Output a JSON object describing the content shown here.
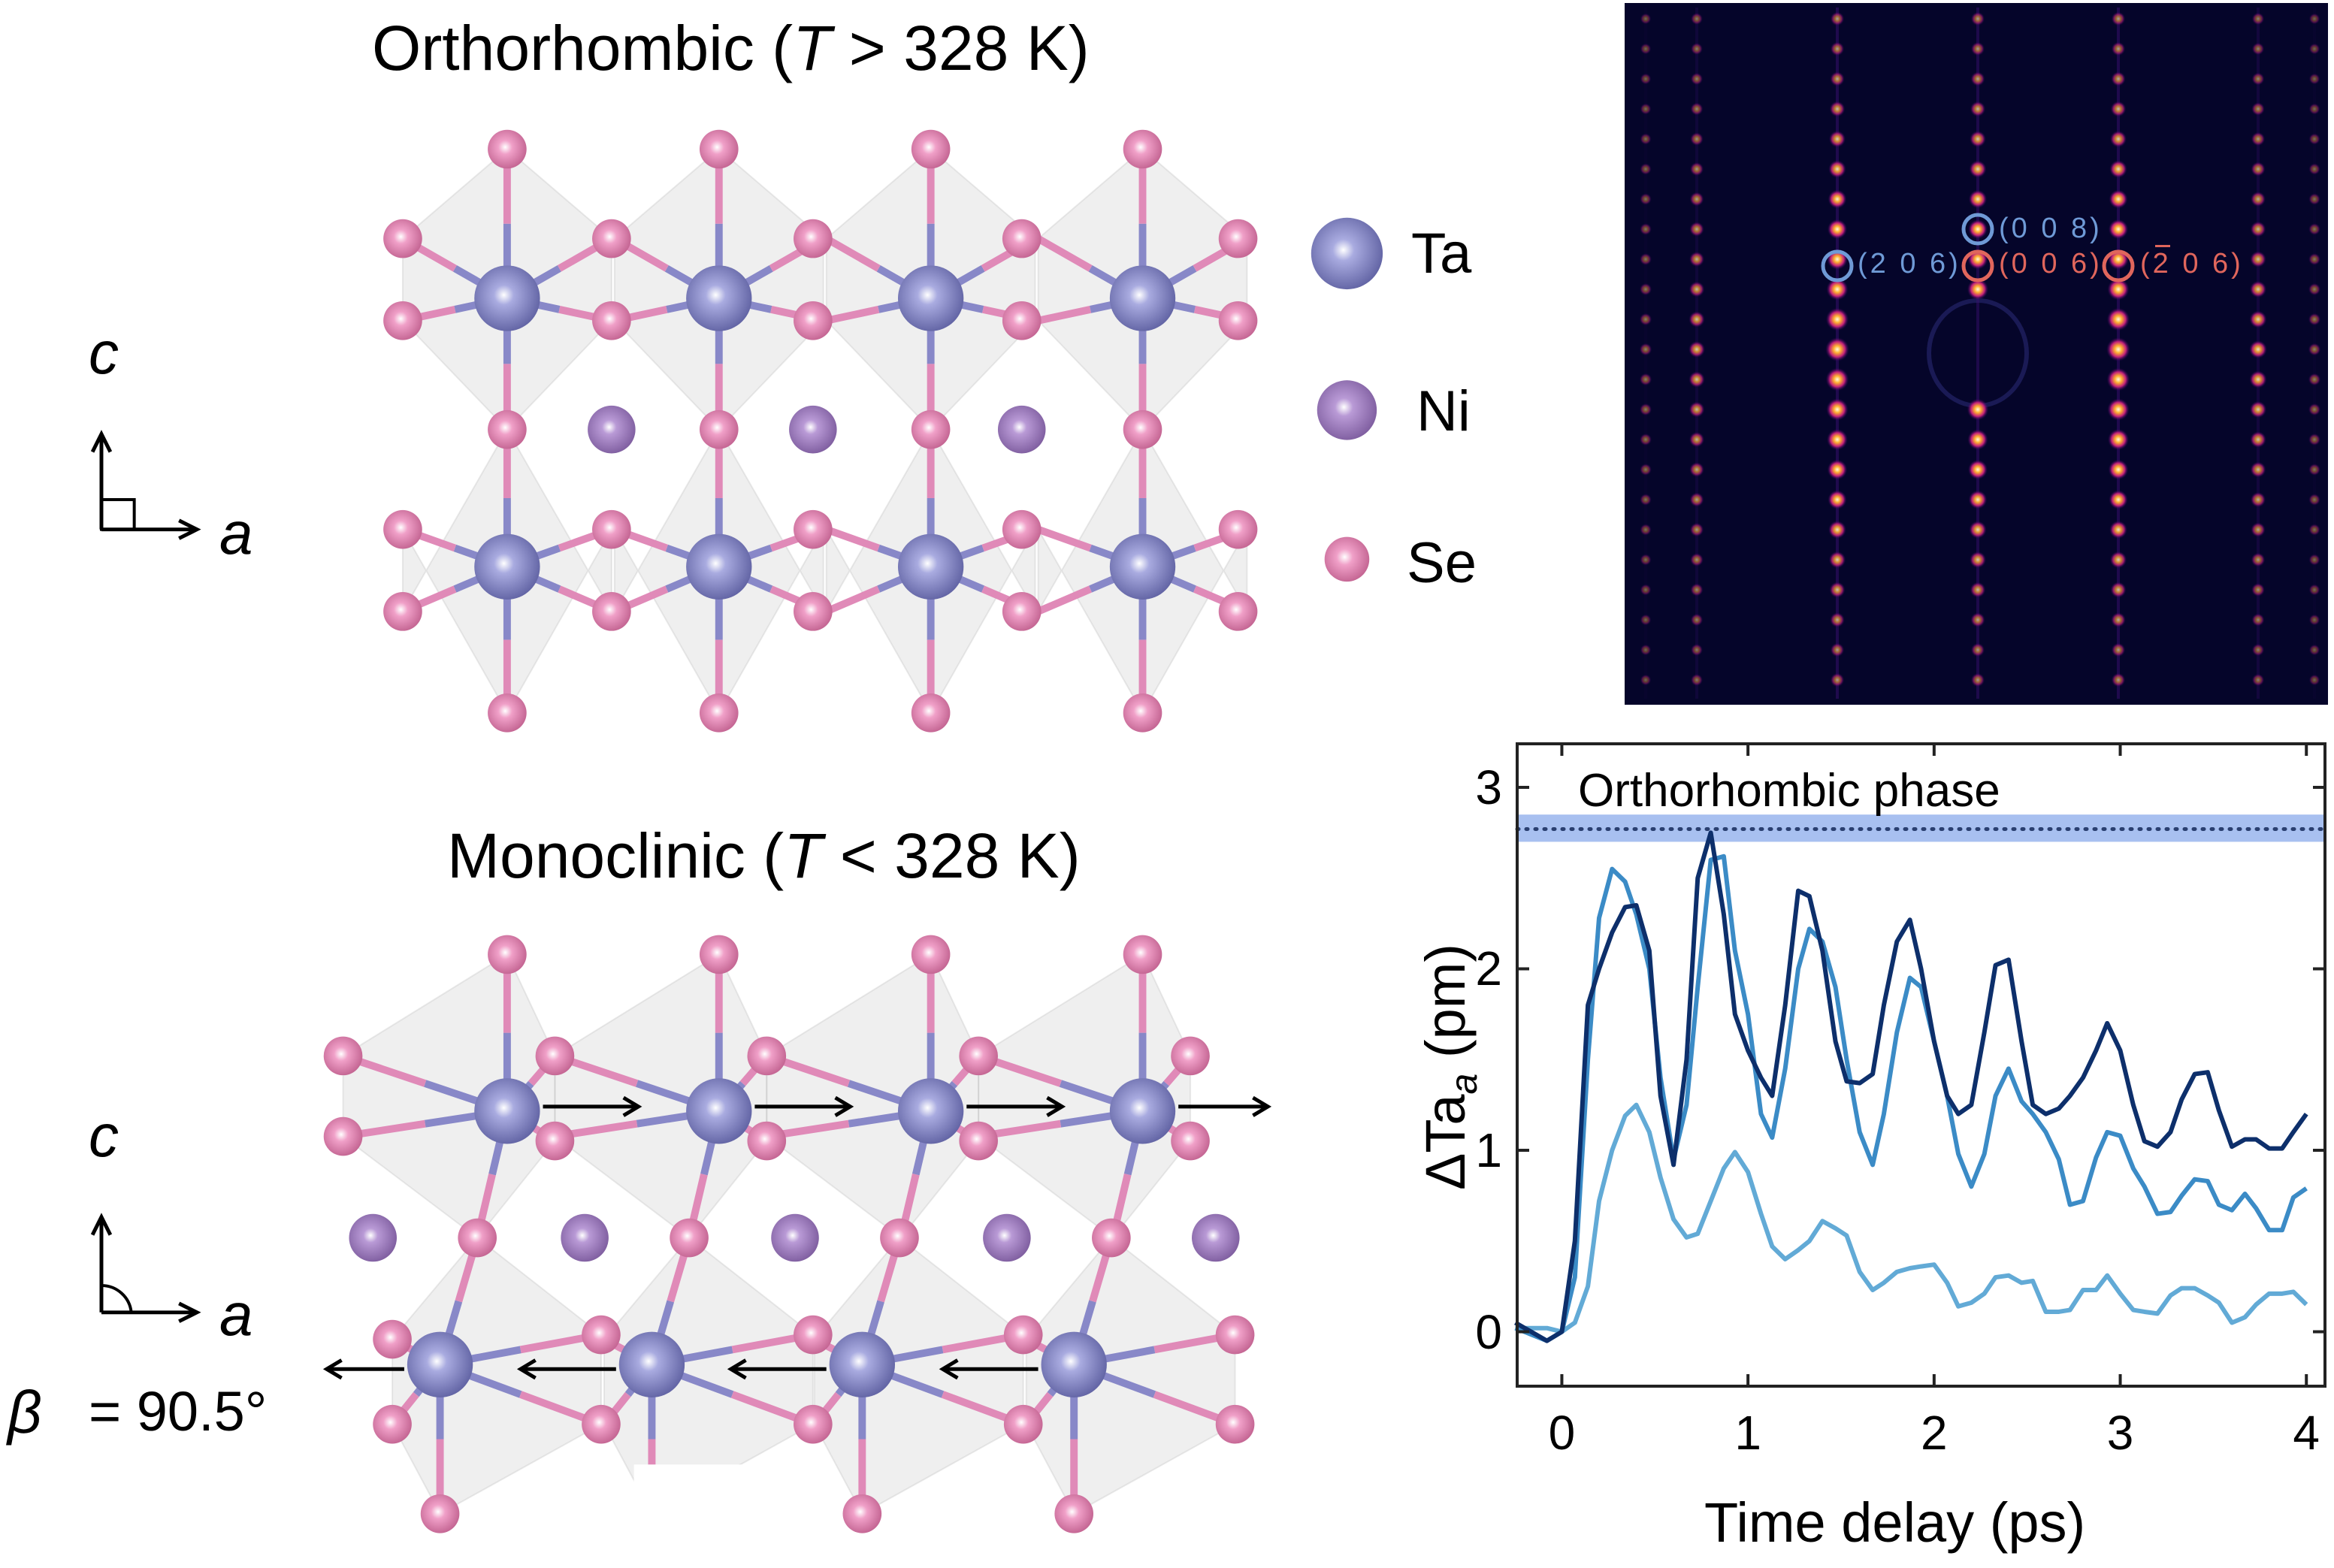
{
  "ortho": {
    "title_pre": "Orthorhombic (",
    "title_T": "T",
    "title_post": " > 328 K)"
  },
  "mono": {
    "title_pre": "Monoclinic (",
    "title_T": "T",
    "title_post": " < 328 K)"
  },
  "legend": [
    {
      "label": "Ta",
      "color": "#7c7fc4"
    },
    {
      "label": "Ni",
      "color": "#a07cc0"
    },
    {
      "label": "Se",
      "color": "#e07fb0"
    }
  ],
  "axes_glyphs": {
    "c": "c",
    "a": "a",
    "beta_symbol": "β",
    "beta_value": "= 90.5°"
  },
  "diffraction": {
    "background": "#05052a",
    "labels": [
      {
        "text": "(0 0 8)",
        "color": "#6f9ad6"
      },
      {
        "text": "(2 0 6)",
        "color": "#6f9ad6"
      },
      {
        "text": "(0 0 6)",
        "color": "#e0665c"
      },
      {
        "text": "(2 0 6)",
        "color": "#e0665c",
        "bar_over": "2"
      }
    ]
  },
  "chart_data": {
    "type": "line",
    "xlabel": "Time delay (ps)",
    "ylabel": "ΔTa",
    "ylabel_sub": "a",
    "ylabel_unit": " (pm)",
    "xlim": [
      -0.24,
      4.1
    ],
    "ylim": [
      -0.3,
      3.24
    ],
    "xticks": [
      "0",
      "1",
      "2",
      "3",
      "4"
    ],
    "yticks": [
      "0",
      "1",
      "2",
      "3"
    ],
    "grid": false,
    "reference": {
      "label": "Orthorhombic phase",
      "value": 2.77,
      "band": [
        2.7,
        2.85
      ],
      "color": "#a8c0f0"
    },
    "x": [
      -0.25,
      -0.08,
      0,
      0.07,
      0.14,
      0.2,
      0.27,
      0.34,
      0.4,
      0.47,
      0.53,
      0.6,
      0.67,
      0.73,
      0.8,
      0.87,
      0.93,
      1.0,
      1.07,
      1.13,
      1.2,
      1.27,
      1.33,
      1.4,
      1.47,
      1.53,
      1.6,
      1.67,
      1.73,
      1.8,
      1.87,
      1.93,
      2.0,
      2.07,
      2.13,
      2.2,
      2.27,
      2.33,
      2.4,
      2.47,
      2.53,
      2.6,
      2.67,
      2.73,
      2.8,
      2.87,
      2.93,
      3.0,
      3.07,
      3.13,
      3.2,
      3.27,
      3.33,
      3.4,
      3.47,
      3.53,
      3.6,
      3.67,
      3.73,
      3.8,
      3.87,
      3.93,
      4.0
    ],
    "series": [
      {
        "color": "#0d2f6b",
        "values": [
          0.05,
          -0.05,
          0,
          0.5,
          1.8,
          2.0,
          2.2,
          2.34,
          2.35,
          2.1,
          1.3,
          0.92,
          1.5,
          2.5,
          2.75,
          2.3,
          1.75,
          1.55,
          1.4,
          1.3,
          1.8,
          2.43,
          2.4,
          2.1,
          1.6,
          1.38,
          1.37,
          1.42,
          1.8,
          2.15,
          2.27,
          2.0,
          1.6,
          1.3,
          1.2,
          1.25,
          1.65,
          2.02,
          2.05,
          1.6,
          1.25,
          1.2,
          1.23,
          1.3,
          1.4,
          1.55,
          1.7,
          1.55,
          1.25,
          1.05,
          1.02,
          1.1,
          1.28,
          1.42,
          1.43,
          1.22,
          1.02,
          1.06,
          1.06,
          1.01,
          1.01,
          1.1,
          1.2
        ]
      },
      {
        "color": "#3b8bc6",
        "values": [
          0.02,
          -0.05,
          0,
          0.3,
          1.5,
          2.28,
          2.55,
          2.48,
          2.3,
          2.0,
          1.4,
          0.95,
          1.25,
          1.9,
          2.6,
          2.62,
          2.1,
          1.75,
          1.2,
          1.07,
          1.45,
          2.0,
          2.22,
          2.15,
          1.9,
          1.5,
          1.1,
          0.92,
          1.2,
          1.65,
          1.95,
          1.9,
          1.6,
          1.3,
          0.98,
          0.8,
          0.98,
          1.3,
          1.45,
          1.27,
          1.2,
          1.1,
          0.95,
          0.7,
          0.72,
          0.96,
          1.1,
          1.08,
          0.9,
          0.8,
          0.65,
          0.66,
          0.75,
          0.84,
          0.83,
          0.7,
          0.67,
          0.76,
          0.68,
          0.56,
          0.56,
          0.74,
          0.79
        ]
      },
      {
        "color": "#62aad6",
        "values": [
          0.02,
          0.02,
          0,
          0.05,
          0.25,
          0.72,
          1.0,
          1.19,
          1.25,
          1.1,
          0.85,
          0.62,
          0.52,
          0.54,
          0.72,
          0.9,
          0.99,
          0.88,
          0.65,
          0.47,
          0.4,
          0.45,
          0.5,
          0.61,
          0.57,
          0.53,
          0.33,
          0.23,
          0.27,
          0.33,
          0.35,
          0.36,
          0.37,
          0.27,
          0.14,
          0.16,
          0.21,
          0.3,
          0.31,
          0.27,
          0.28,
          0.11,
          0.11,
          0.12,
          0.23,
          0.23,
          0.31,
          0.21,
          0.12,
          0.11,
          0.1,
          0.2,
          0.24,
          0.24,
          0.2,
          0.16,
          0.05,
          0.08,
          0.15,
          0.21,
          0.21,
          0.22,
          0.15
        ]
      }
    ]
  }
}
